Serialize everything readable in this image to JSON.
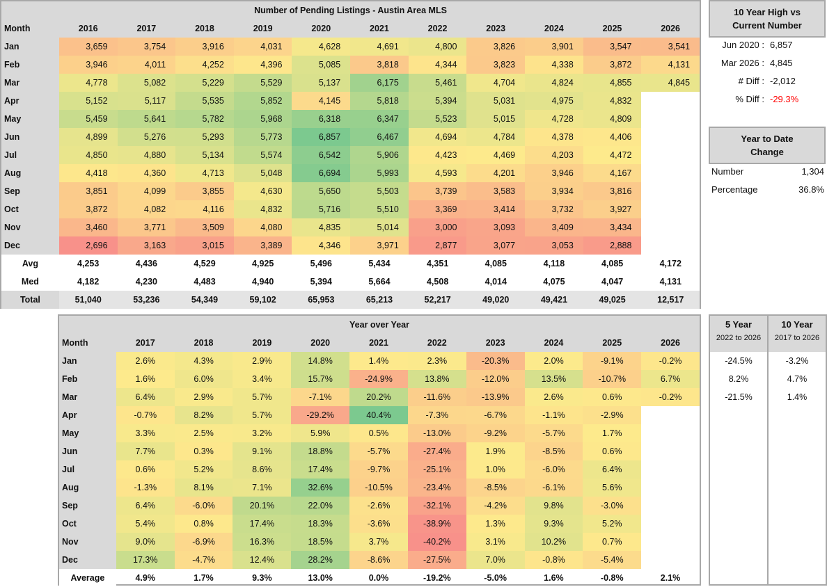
{
  "pending": {
    "title": "Number of Pending Listings - Austin Area MLS",
    "month_header": "Month",
    "years": [
      "2016",
      "2017",
      "2018",
      "2019",
      "2020",
      "2021",
      "2022",
      "2023",
      "2024",
      "2025",
      "2026"
    ],
    "rows": [
      {
        "month": "Jan",
        "values": [
          "3,659",
          "3,754",
          "3,916",
          "4,031",
          "4,628",
          "4,691",
          "4,800",
          "3,826",
          "3,901",
          "3,547",
          "3,541"
        ]
      },
      {
        "month": "Feb",
        "values": [
          "3,946",
          "4,011",
          "4,252",
          "4,396",
          "5,085",
          "3,818",
          "4,344",
          "3,823",
          "4,338",
          "3,872",
          "4,131"
        ]
      },
      {
        "month": "Mar",
        "values": [
          "4,778",
          "5,082",
          "5,229",
          "5,529",
          "5,137",
          "6,175",
          "5,461",
          "4,704",
          "4,824",
          "4,855",
          "4,845"
        ]
      },
      {
        "month": "Apr",
        "values": [
          "5,152",
          "5,117",
          "5,535",
          "5,852",
          "4,145",
          "5,818",
          "5,394",
          "5,031",
          "4,975",
          "4,832",
          ""
        ]
      },
      {
        "month": "May",
        "values": [
          "5,459",
          "5,641",
          "5,782",
          "5,968",
          "6,318",
          "6,347",
          "5,523",
          "5,015",
          "4,728",
          "4,809",
          ""
        ]
      },
      {
        "month": "Jun",
        "values": [
          "4,899",
          "5,276",
          "5,293",
          "5,773",
          "6,857",
          "6,467",
          "4,694",
          "4,784",
          "4,378",
          "4,406",
          ""
        ]
      },
      {
        "month": "Jul",
        "values": [
          "4,850",
          "4,880",
          "5,134",
          "5,574",
          "6,542",
          "5,906",
          "4,423",
          "4,469",
          "4,203",
          "4,472",
          ""
        ]
      },
      {
        "month": "Aug",
        "values": [
          "4,418",
          "4,360",
          "4,713",
          "5,048",
          "6,694",
          "5,993",
          "4,593",
          "4,201",
          "3,946",
          "4,167",
          ""
        ]
      },
      {
        "month": "Sep",
        "values": [
          "3,851",
          "4,099",
          "3,855",
          "4,630",
          "5,650",
          "5,503",
          "3,739",
          "3,583",
          "3,934",
          "3,816",
          ""
        ]
      },
      {
        "month": "Oct",
        "values": [
          "3,872",
          "4,082",
          "4,116",
          "4,832",
          "5,716",
          "5,510",
          "3,369",
          "3,414",
          "3,732",
          "3,927",
          ""
        ]
      },
      {
        "month": "Nov",
        "values": [
          "3,460",
          "3,771",
          "3,509",
          "4,080",
          "4,835",
          "5,014",
          "3,000",
          "3,093",
          "3,409",
          "3,434",
          ""
        ]
      },
      {
        "month": "Dec",
        "values": [
          "2,696",
          "3,163",
          "3,015",
          "3,389",
          "4,346",
          "3,971",
          "2,877",
          "3,077",
          "3,053",
          "2,888",
          ""
        ]
      }
    ],
    "summary": [
      {
        "label": "Avg",
        "values": [
          "4,253",
          "4,436",
          "4,529",
          "4,925",
          "5,496",
          "5,434",
          "4,351",
          "4,085",
          "4,118",
          "4,085",
          "4,172"
        ]
      },
      {
        "label": "Med",
        "values": [
          "4,182",
          "4,230",
          "4,483",
          "4,940",
          "5,394",
          "5,664",
          "4,508",
          "4,014",
          "4,075",
          "4,047",
          "4,131"
        ]
      },
      {
        "label": "Total",
        "values": [
          "51,040",
          "53,236",
          "54,349",
          "59,102",
          "65,953",
          "65,213",
          "52,217",
          "49,020",
          "49,421",
          "49,025",
          "12,517"
        ]
      }
    ]
  },
  "yoy": {
    "title": "Year over Year",
    "month_header": "Month",
    "years": [
      "2017",
      "2018",
      "2019",
      "2020",
      "2021",
      "2022",
      "2023",
      "2024",
      "2025",
      "2026"
    ],
    "rows": [
      {
        "month": "Jan",
        "values": [
          "2.6%",
          "4.3%",
          "2.9%",
          "14.8%",
          "1.4%",
          "2.3%",
          "-20.3%",
          "2.0%",
          "-9.1%",
          "-0.2%"
        ]
      },
      {
        "month": "Feb",
        "values": [
          "1.6%",
          "6.0%",
          "3.4%",
          "15.7%",
          "-24.9%",
          "13.8%",
          "-12.0%",
          "13.5%",
          "-10.7%",
          "6.7%"
        ]
      },
      {
        "month": "Mar",
        "values": [
          "6.4%",
          "2.9%",
          "5.7%",
          "-7.1%",
          "20.2%",
          "-11.6%",
          "-13.9%",
          "2.6%",
          "0.6%",
          "-0.2%"
        ]
      },
      {
        "month": "Apr",
        "values": [
          "-0.7%",
          "8.2%",
          "5.7%",
          "-29.2%",
          "40.4%",
          "-7.3%",
          "-6.7%",
          "-1.1%",
          "-2.9%",
          ""
        ]
      },
      {
        "month": "May",
        "values": [
          "3.3%",
          "2.5%",
          "3.2%",
          "5.9%",
          "0.5%",
          "-13.0%",
          "-9.2%",
          "-5.7%",
          "1.7%",
          ""
        ]
      },
      {
        "month": "Jun",
        "values": [
          "7.7%",
          "0.3%",
          "9.1%",
          "18.8%",
          "-5.7%",
          "-27.4%",
          "1.9%",
          "-8.5%",
          "0.6%",
          ""
        ]
      },
      {
        "month": "Jul",
        "values": [
          "0.6%",
          "5.2%",
          "8.6%",
          "17.4%",
          "-9.7%",
          "-25.1%",
          "1.0%",
          "-6.0%",
          "6.4%",
          ""
        ]
      },
      {
        "month": "Aug",
        "values": [
          "-1.3%",
          "8.1%",
          "7.1%",
          "32.6%",
          "-10.5%",
          "-23.4%",
          "-8.5%",
          "-6.1%",
          "5.6%",
          ""
        ]
      },
      {
        "month": "Sep",
        "values": [
          "6.4%",
          "-6.0%",
          "20.1%",
          "22.0%",
          "-2.6%",
          "-32.1%",
          "-4.2%",
          "9.8%",
          "-3.0%",
          ""
        ]
      },
      {
        "month": "Oct",
        "values": [
          "5.4%",
          "0.8%",
          "17.4%",
          "18.3%",
          "-3.6%",
          "-38.9%",
          "1.3%",
          "9.3%",
          "5.2%",
          ""
        ]
      },
      {
        "month": "Nov",
        "values": [
          "9.0%",
          "-6.9%",
          "16.3%",
          "18.5%",
          "3.7%",
          "-40.2%",
          "3.1%",
          "10.2%",
          "0.7%",
          ""
        ]
      },
      {
        "month": "Dec",
        "values": [
          "17.3%",
          "-4.7%",
          "12.4%",
          "28.2%",
          "-8.6%",
          "-27.5%",
          "7.0%",
          "-0.8%",
          "-5.4%",
          ""
        ]
      }
    ],
    "summary": [
      {
        "label": "Average",
        "values": [
          "4.9%",
          "1.7%",
          "9.3%",
          "13.0%",
          "0.0%",
          "-19.2%",
          "-5.0%",
          "1.6%",
          "-0.8%",
          "2.1%"
        ]
      }
    ]
  },
  "high_vs_current": {
    "title_line1": "10 Year High vs",
    "title_line2": "Current Number",
    "items": [
      {
        "label": "Jun 2020 :",
        "value": "6,857"
      },
      {
        "label": "Mar 2026 :",
        "value": "4,845"
      },
      {
        "label": "# Diff :",
        "value": "-2,012"
      },
      {
        "label": "% Diff :",
        "value": "-29.3%"
      }
    ],
    "negative_color": "#ff0000"
  },
  "ytd": {
    "title_line1": "Year to Date",
    "title_line2": "Change",
    "items": [
      {
        "label": "Number",
        "value": "1,304"
      },
      {
        "label": "Percentage",
        "value": "36.8%"
      }
    ]
  },
  "span": {
    "five": {
      "title": "5 Year",
      "range": "2022 to 2026",
      "values": [
        "-24.5%",
        "8.2%",
        "-21.5%"
      ]
    },
    "ten": {
      "title": "10 Year",
      "range": "2017 to 2026",
      "values": [
        "-3.2%",
        "4.7%",
        "1.4%"
      ]
    }
  },
  "colors": {
    "low": "#f8918a",
    "mid": "#fdea8c",
    "high": "#7cc98f",
    "header": "#d9d9d9",
    "border": "#a8a8a8"
  }
}
